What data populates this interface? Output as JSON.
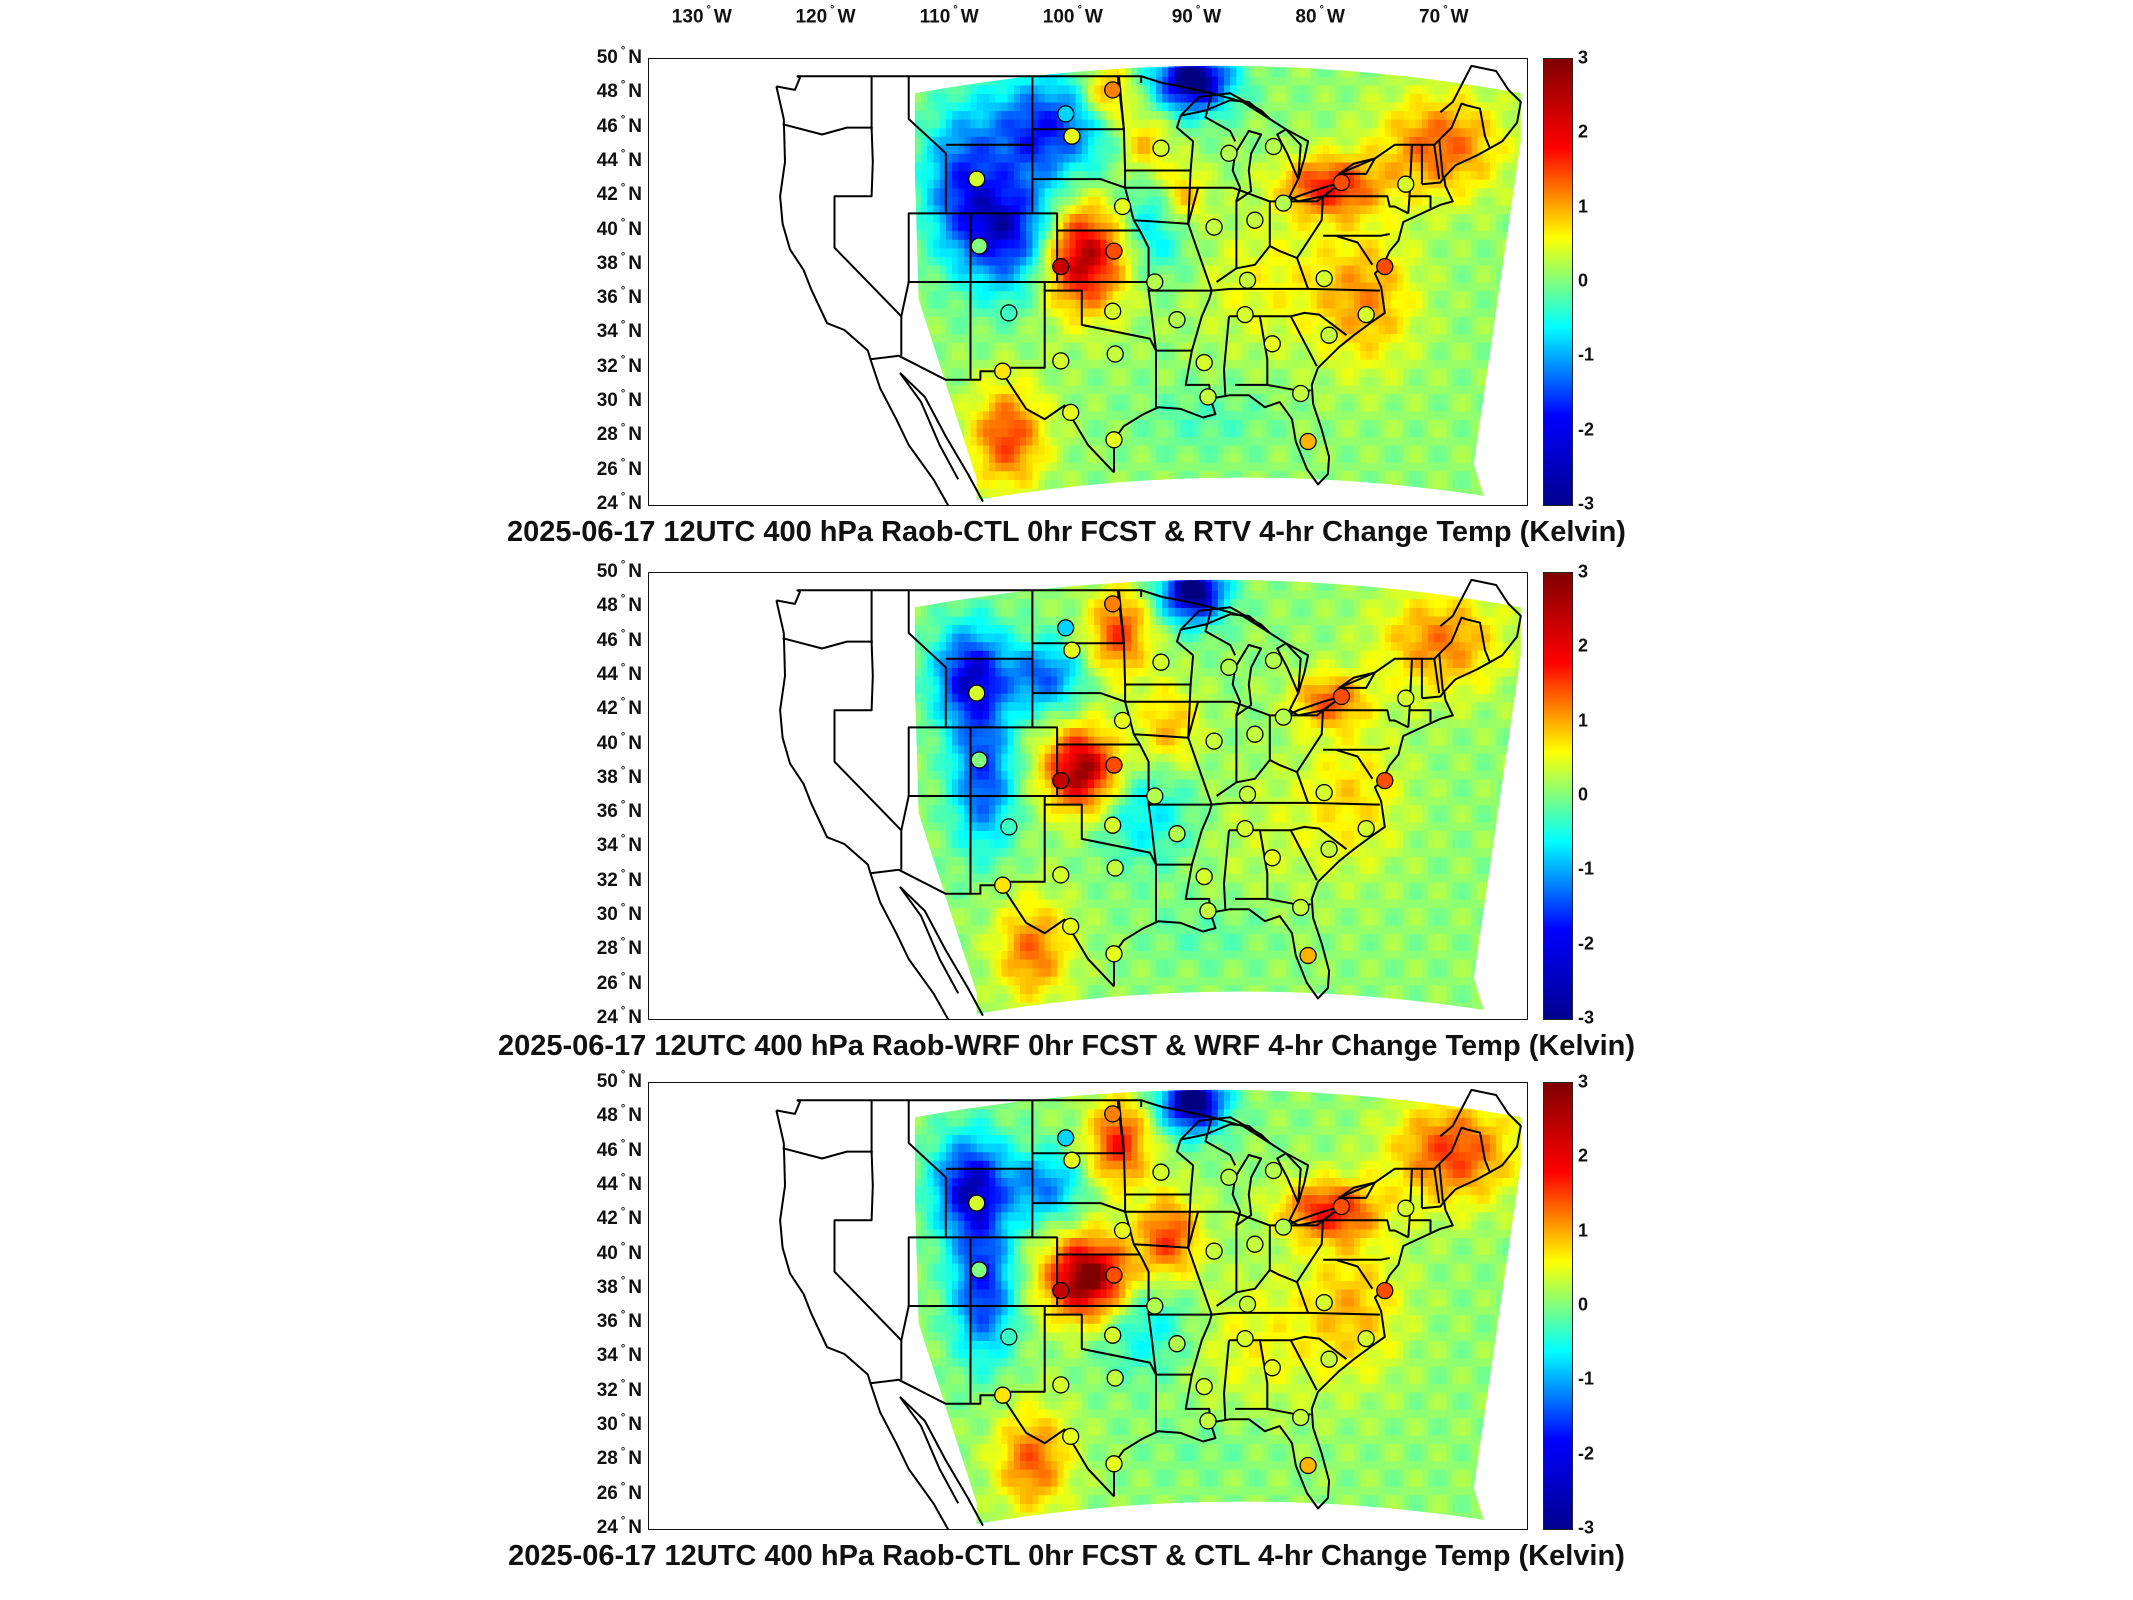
{
  "longitude_labels": [
    {
      "deg": "130",
      "hem": "W"
    },
    {
      "deg": "120",
      "hem": "W"
    },
    {
      "deg": "110",
      "hem": "W"
    },
    {
      "deg": "100",
      "hem": "W"
    },
    {
      "deg": "90",
      "hem": "W"
    },
    {
      "deg": "80",
      "hem": "W"
    },
    {
      "deg": "70",
      "hem": "W"
    }
  ],
  "latitude_labels": [
    {
      "deg": "50",
      "hem": "N"
    },
    {
      "deg": "48",
      "hem": "N"
    },
    {
      "deg": "46",
      "hem": "N"
    },
    {
      "deg": "44",
      "hem": "N"
    },
    {
      "deg": "42",
      "hem": "N"
    },
    {
      "deg": "40",
      "hem": "N"
    },
    {
      "deg": "38",
      "hem": "N"
    },
    {
      "deg": "36",
      "hem": "N"
    },
    {
      "deg": "34",
      "hem": "N"
    },
    {
      "deg": "32",
      "hem": "N"
    },
    {
      "deg": "30",
      "hem": "N"
    },
    {
      "deg": "28",
      "hem": "N"
    },
    {
      "deg": "26",
      "hem": "N"
    },
    {
      "deg": "24",
      "hem": "N"
    }
  ],
  "colorbar": {
    "ticks": [
      "3",
      "2",
      "1",
      "0",
      "-1",
      "-2",
      "-3"
    ],
    "range": [
      -3,
      3
    ],
    "colormap": "jet",
    "colors": [
      "#00008f",
      "#0000ff",
      "#00ffff",
      "#ffff00",
      "#ff0000",
      "#800000"
    ]
  },
  "panels": [
    {
      "title": "2025-06-17 12UTC 400 hPa Raob-CTL 0hr FCST & RTV 4-hr Change Temp (Kelvin)"
    },
    {
      "title": "2025-06-17 12UTC 400 hPa Raob-WRF 0hr FCST & WRF 4-hr Change Temp (Kelvin)"
    },
    {
      "title": "2025-06-17 12UTC 400 hPa Raob-CTL 0hr FCST & CTL 4-hr Change Temp (Kelvin)"
    }
  ],
  "stations": [
    {
      "lon": -97.5,
      "lat": 48.2,
      "v": 1.5
    },
    {
      "lon": -101.3,
      "lat": 46.8,
      "v": -1.0
    },
    {
      "lon": -100.8,
      "lat": 45.5,
      "v": 0.6
    },
    {
      "lon": -93.6,
      "lat": 44.8,
      "v": 0.5
    },
    {
      "lon": -88.1,
      "lat": 44.5,
      "v": 0.3
    },
    {
      "lon": -84.5,
      "lat": 44.9,
      "v": 0.3
    },
    {
      "lon": -108.5,
      "lat": 43.0,
      "v": 0.5
    },
    {
      "lon": -96.7,
      "lat": 41.4,
      "v": 0.6
    },
    {
      "lon": -89.3,
      "lat": 40.2,
      "v": 0.4
    },
    {
      "lon": -86.0,
      "lat": 40.6,
      "v": 0.4
    },
    {
      "lon": -83.7,
      "lat": 41.6,
      "v": 0.3
    },
    {
      "lon": -79.0,
      "lat": 42.8,
      "v": 1.8
    },
    {
      "lon": -73.8,
      "lat": 42.7,
      "v": 0.5
    },
    {
      "lon": -108.3,
      "lat": 39.1,
      "v": 0.0
    },
    {
      "lon": -101.7,
      "lat": 37.9,
      "v": 2.6
    },
    {
      "lon": -97.4,
      "lat": 38.8,
      "v": 1.8
    },
    {
      "lon": -94.1,
      "lat": 37.0,
      "v": 0.3
    },
    {
      "lon": -86.6,
      "lat": 37.1,
      "v": 0.4
    },
    {
      "lon": -80.4,
      "lat": 37.2,
      "v": 0.5
    },
    {
      "lon": -75.5,
      "lat": 37.9,
      "v": 1.8
    },
    {
      "lon": -105.9,
      "lat": 35.2,
      "v": -0.4
    },
    {
      "lon": -97.5,
      "lat": 35.3,
      "v": 0.5
    },
    {
      "lon": -92.3,
      "lat": 34.8,
      "v": 0.3
    },
    {
      "lon": -86.8,
      "lat": 35.1,
      "v": 0.5
    },
    {
      "lon": -84.6,
      "lat": 33.4,
      "v": 0.6
    },
    {
      "lon": -80.0,
      "lat": 33.9,
      "v": 0.4
    },
    {
      "lon": -77.0,
      "lat": 35.1,
      "v": 0.5
    },
    {
      "lon": -101.7,
      "lat": 32.4,
      "v": 0.5
    },
    {
      "lon": -106.4,
      "lat": 31.8,
      "v": 0.9
    },
    {
      "lon": -97.3,
      "lat": 32.8,
      "v": 0.4
    },
    {
      "lon": -90.1,
      "lat": 32.3,
      "v": 0.5
    },
    {
      "lon": -89.8,
      "lat": 30.3,
      "v": 0.4
    },
    {
      "lon": -82.3,
      "lat": 30.5,
      "v": 0.4
    },
    {
      "lon": -100.9,
      "lat": 29.4,
      "v": 0.6
    },
    {
      "lon": -97.4,
      "lat": 27.8,
      "v": 0.6
    },
    {
      "lon": -81.7,
      "lat": 27.7,
      "v": 1.2
    }
  ]
}
